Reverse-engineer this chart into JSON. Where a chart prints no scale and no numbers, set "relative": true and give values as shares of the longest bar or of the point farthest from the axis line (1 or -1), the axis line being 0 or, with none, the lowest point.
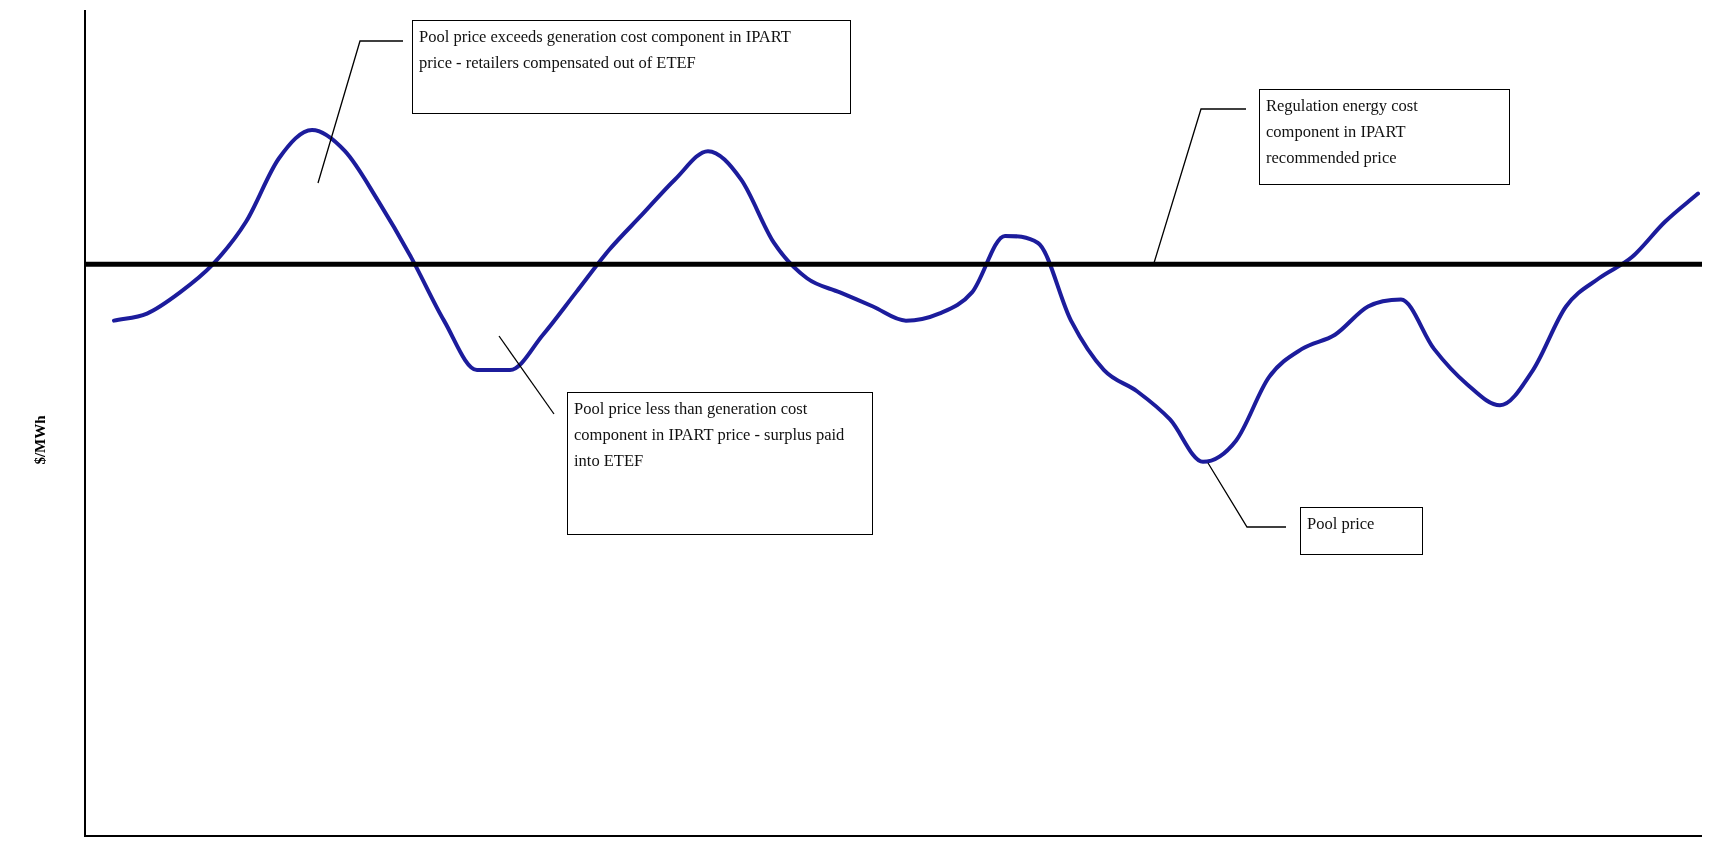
{
  "chart_data": {
    "type": "line",
    "ylabel": "$/MWh",
    "relative": true,
    "tick_labels": false,
    "categories": [
      null,
      null,
      null,
      null,
      null,
      null,
      null,
      null,
      null,
      null,
      null,
      null,
      null,
      null,
      null,
      null,
      null,
      null,
      null,
      null,
      null,
      null,
      null,
      null,
      null,
      null,
      null,
      null,
      null,
      null,
      null,
      null,
      null,
      null,
      null,
      null,
      null,
      null,
      null,
      null,
      null,
      null,
      null,
      null,
      null,
      null,
      null,
      null,
      null
    ],
    "series": [
      {
        "name": "Pool price",
        "color": "#1c1c9c",
        "values": [
          0.73,
          0.74,
          0.77,
          0.81,
          0.87,
          0.96,
          1.0,
          0.97,
          0.9,
          0.82,
          0.73,
          0.66,
          0.66,
          0.71,
          0.77,
          0.83,
          0.88,
          0.93,
          0.97,
          0.93,
          0.84,
          0.79,
          0.77,
          0.75,
          0.73,
          0.74,
          0.77,
          0.85,
          0.84,
          0.73,
          0.66,
          0.63,
          0.59,
          0.53,
          0.56,
          0.65,
          0.69,
          0.71,
          0.75,
          0.76,
          0.69,
          0.64,
          0.61,
          0.66,
          0.75,
          0.79,
          0.82,
          0.87,
          0.91
        ]
      }
    ],
    "ref_lines": [
      {
        "axis": "y",
        "value": 0.81,
        "label": "Regulation energy cost component in IPART recommended price",
        "color": "#000000"
      }
    ],
    "annotations": [
      "Pool price exceeds generation cost component in IPART price - retailers compensated out of ETEF",
      "Pool price less than generation cost component in IPART price - surplus paid into ETEF"
    ]
  }
}
